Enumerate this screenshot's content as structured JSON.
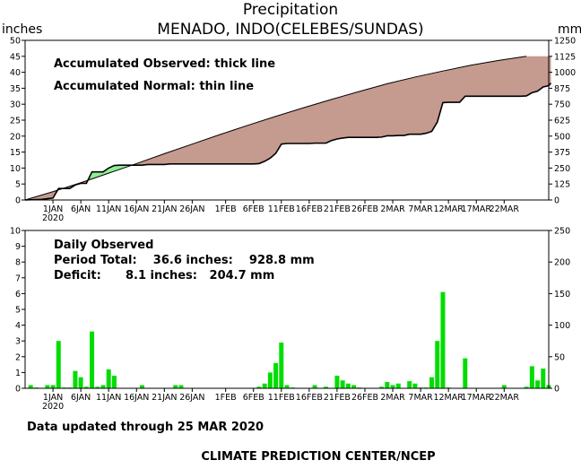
{
  "title": "Precipitation",
  "station": "MENADO, INDO(CELEBES/SUNDAS)",
  "left_unit": "inches",
  "right_unit": "mm",
  "updated_text": "Data updated through 25 MAR 2020",
  "footer": "CLIMATE PREDICTION CENTER/NCEP",
  "colors": {
    "surplus_fill": "#90ee90",
    "deficit_fill": "#c59a8f",
    "daily_bar": "#00dd00",
    "axis": "#000000"
  },
  "chart_data": [
    {
      "type": "area",
      "legend": [
        "Accumulated Observed: thick line",
        "Accumulated Normal: thin line"
      ],
      "x_ticks": [
        "1JAN",
        "6JAN",
        "11JAN",
        "16JAN",
        "21JAN",
        "26JAN",
        "1FEB",
        "6FEB",
        "11FEB",
        "16FEB",
        "21FEB",
        "26FEB",
        "2MAR",
        "7MAR",
        "12MAR",
        "17MAR",
        "22MAR"
      ],
      "x_ticks_sub": [
        "2020",
        "",
        "",
        "",
        "",
        "",
        "",
        "",
        "",
        "",
        "",
        "",
        "",
        "",
        "",
        "",
        ""
      ],
      "ylim": [
        0,
        50
      ],
      "y_ticks": [
        0,
        5,
        10,
        15,
        20,
        25,
        30,
        35,
        40,
        45,
        50
      ],
      "y2_ticks": [
        0,
        125,
        250,
        375,
        500,
        625,
        750,
        875,
        1000,
        1125,
        1250
      ],
      "x_days_start": -5,
      "x_days_end": 89,
      "normal": [
        [
          -5,
          0
        ],
        [
          0,
          2.6
        ],
        [
          5,
          5.4
        ],
        [
          10,
          8.4
        ],
        [
          15,
          11.4
        ],
        [
          20,
          14.5
        ],
        [
          25,
          17.5
        ],
        [
          30,
          20.5
        ],
        [
          35,
          23.4
        ],
        [
          40,
          26.2
        ],
        [
          45,
          28.9
        ],
        [
          50,
          31.5
        ],
        [
          55,
          34.0
        ],
        [
          60,
          36.4
        ],
        [
          65,
          38.5
        ],
        [
          70,
          40.4
        ],
        [
          75,
          42.2
        ],
        [
          80,
          43.7
        ],
        [
          85,
          45.0
        ]
      ],
      "observed": [
        [
          -5,
          0
        ],
        [
          -2,
          0.2
        ],
        [
          -1,
          0.4
        ],
        [
          0,
          0.6
        ],
        [
          1,
          3.6
        ],
        [
          2,
          3.6
        ],
        [
          3,
          3.6
        ],
        [
          4,
          4.7
        ],
        [
          5,
          5.2
        ],
        [
          6,
          5.2
        ],
        [
          7,
          8.8
        ],
        [
          8,
          8.8
        ],
        [
          9,
          8.8
        ],
        [
          10,
          10.0
        ],
        [
          11,
          10.8
        ],
        [
          12,
          10.9
        ],
        [
          13,
          10.9
        ],
        [
          14,
          10.9
        ],
        [
          15,
          10.9
        ],
        [
          16,
          10.9
        ],
        [
          17,
          11.1
        ],
        [
          18,
          11.1
        ],
        [
          19,
          11.1
        ],
        [
          20,
          11.1
        ],
        [
          21,
          11.3
        ],
        [
          22,
          11.3
        ],
        [
          36,
          11.3
        ],
        [
          37,
          11.4
        ],
        [
          38,
          12.1
        ],
        [
          39,
          13.1
        ],
        [
          40,
          14.6
        ],
        [
          41,
          17.5
        ],
        [
          42,
          17.7
        ],
        [
          43,
          17.7
        ],
        [
          44,
          17.7
        ],
        [
          45,
          17.7
        ],
        [
          46,
          17.7
        ],
        [
          47,
          17.8
        ],
        [
          48,
          17.8
        ],
        [
          49,
          17.8
        ],
        [
          50,
          18.6
        ],
        [
          51,
          19.1
        ],
        [
          52,
          19.4
        ],
        [
          53,
          19.6
        ],
        [
          54,
          19.6
        ],
        [
          55,
          19.6
        ],
        [
          56,
          19.6
        ],
        [
          57,
          19.6
        ],
        [
          58,
          19.6
        ],
        [
          59,
          19.7
        ],
        [
          60,
          20.1
        ],
        [
          61,
          20.1
        ],
        [
          62,
          20.2
        ],
        [
          63,
          20.2
        ],
        [
          64,
          20.6
        ],
        [
          65,
          20.6
        ],
        [
          66,
          20.6
        ],
        [
          67,
          20.9
        ],
        [
          68,
          21.5
        ],
        [
          69,
          24.4
        ],
        [
          70,
          30.5
        ],
        [
          71,
          30.6
        ],
        [
          72,
          30.6
        ],
        [
          73,
          30.6
        ],
        [
          74,
          32.5
        ],
        [
          75,
          32.5
        ],
        [
          76,
          32.5
        ],
        [
          77,
          32.5
        ],
        [
          78,
          32.5
        ],
        [
          79,
          32.5
        ],
        [
          80,
          32.5
        ],
        [
          81,
          32.5
        ],
        [
          82,
          32.5
        ],
        [
          83,
          32.5
        ],
        [
          84,
          32.5
        ],
        [
          85,
          32.6
        ],
        [
          86,
          33.6
        ],
        [
          87,
          34.1
        ],
        [
          88,
          35.4
        ],
        [
          89,
          35.8
        ],
        [
          89.4,
          36.6
        ]
      ]
    },
    {
      "type": "bar",
      "notes": [
        "Daily Observed",
        "Period Total:    36.6 inches:    928.8 mm",
        "Deficit:      8.1 inches:   204.7 mm"
      ],
      "x_ticks": [
        "1JAN",
        "6JAN",
        "11JAN",
        "16JAN",
        "21JAN",
        "26JAN",
        "1FEB",
        "6FEB",
        "11FEB",
        "16FEB",
        "21FEB",
        "26FEB",
        "2MAR",
        "7MAR",
        "12MAR",
        "17MAR",
        "22MAR"
      ],
      "x_ticks_sub": [
        "2020",
        "",
        "",
        "",
        "",
        "",
        "",
        "",
        "",
        "",
        "",
        "",
        "",
        "",
        "",
        "",
        ""
      ],
      "ylim": [
        0,
        10
      ],
      "y_ticks": [
        0,
        1,
        2,
        3,
        4,
        5,
        6,
        7,
        8,
        9,
        10
      ],
      "y2_ticks": [
        0,
        50,
        100,
        150,
        200,
        250
      ],
      "days": [
        -4,
        -3,
        -1,
        0,
        1,
        2,
        3,
        4,
        5,
        6,
        7,
        8,
        9,
        10,
        11,
        16,
        22,
        23,
        37,
        38,
        39,
        40,
        41,
        42,
        43,
        47,
        49,
        51,
        52,
        53,
        54,
        55,
        59,
        60,
        61,
        62,
        64,
        65,
        66,
        67,
        68,
        69,
        70,
        71,
        74,
        81,
        85,
        86,
        87,
        88,
        89
      ],
      "values": [
        0.2,
        0.05,
        0.2,
        0.2,
        3.0,
        0.05,
        0.05,
        1.1,
        0.7,
        0.1,
        3.6,
        0.1,
        0.2,
        1.2,
        0.8,
        0.2,
        0.2,
        0.2,
        0.1,
        0.3,
        1.0,
        1.6,
        2.9,
        0.2,
        0.05,
        0.2,
        0.1,
        0.8,
        0.5,
        0.3,
        0.2,
        0.05,
        0.1,
        0.4,
        0.2,
        0.3,
        0.45,
        0.3,
        0.05,
        0.05,
        0.7,
        3.0,
        6.1,
        0.05,
        1.9,
        0.2,
        0.1,
        1.4,
        0.5,
        1.25,
        0.2
      ]
    }
  ]
}
